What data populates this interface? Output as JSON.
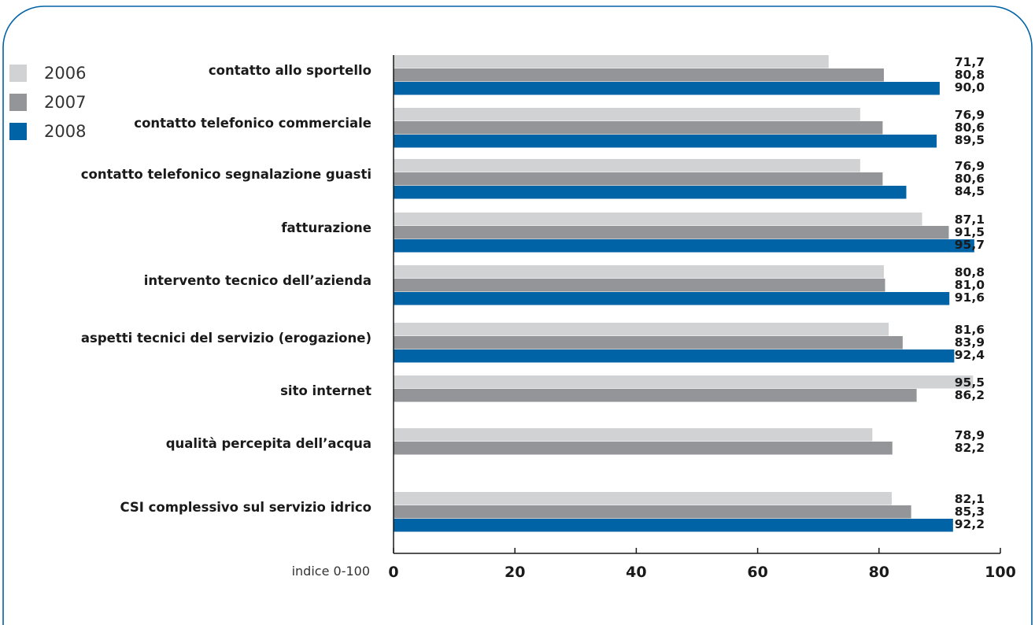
{
  "chart_data": {
    "type": "bar",
    "orientation": "horizontal",
    "categories": [
      "contatto allo sportello",
      "contatto telefonico commerciale",
      "contatto telefonico segnalazione guasti",
      "fatturazione",
      "intervento tecnico dell’azienda",
      "aspetti tecnici del servizio (erogazione)",
      "sito internet",
      "qualità percepita dell’acqua",
      "CSI complessivo sul servizio idrico"
    ],
    "series": [
      {
        "name": "2006",
        "color": "#d1d2d4",
        "values": [
          71.7,
          76.9,
          76.9,
          87.1,
          80.8,
          81.6,
          95.5,
          78.9,
          82.1
        ],
        "labels": [
          "71,7",
          "76,9",
          "76,9",
          "87,1",
          "80,8",
          "81,6",
          "95,5",
          "78,9",
          "82,1"
        ]
      },
      {
        "name": "2007",
        "color": "#939598",
        "values": [
          80.8,
          80.6,
          80.6,
          91.5,
          81.0,
          83.9,
          86.2,
          82.2,
          85.3
        ],
        "labels": [
          "80,8",
          "80,6",
          "80,6",
          "91,5",
          "81,0",
          "83,9",
          "86,2",
          "82,2",
          "85,3"
        ]
      },
      {
        "name": "2008",
        "color": "#0063a6",
        "values": [
          90.0,
          89.5,
          84.5,
          95.7,
          91.6,
          92.4,
          null,
          null,
          92.2
        ],
        "labels": [
          "90,0",
          "89,5",
          "84,5",
          "95,7",
          "91,6",
          "92,4",
          null,
          null,
          "92,2"
        ]
      }
    ],
    "x_ticks": [
      "0",
      "20",
      "40",
      "60",
      "80",
      "100"
    ],
    "x_tick_values": [
      0,
      20,
      40,
      60,
      80,
      100
    ],
    "xlim": [
      0,
      100
    ],
    "xlabel": "indice 0-100",
    "grid": false,
    "legend_position": "top-left"
  },
  "frame_color": "#0063a6"
}
